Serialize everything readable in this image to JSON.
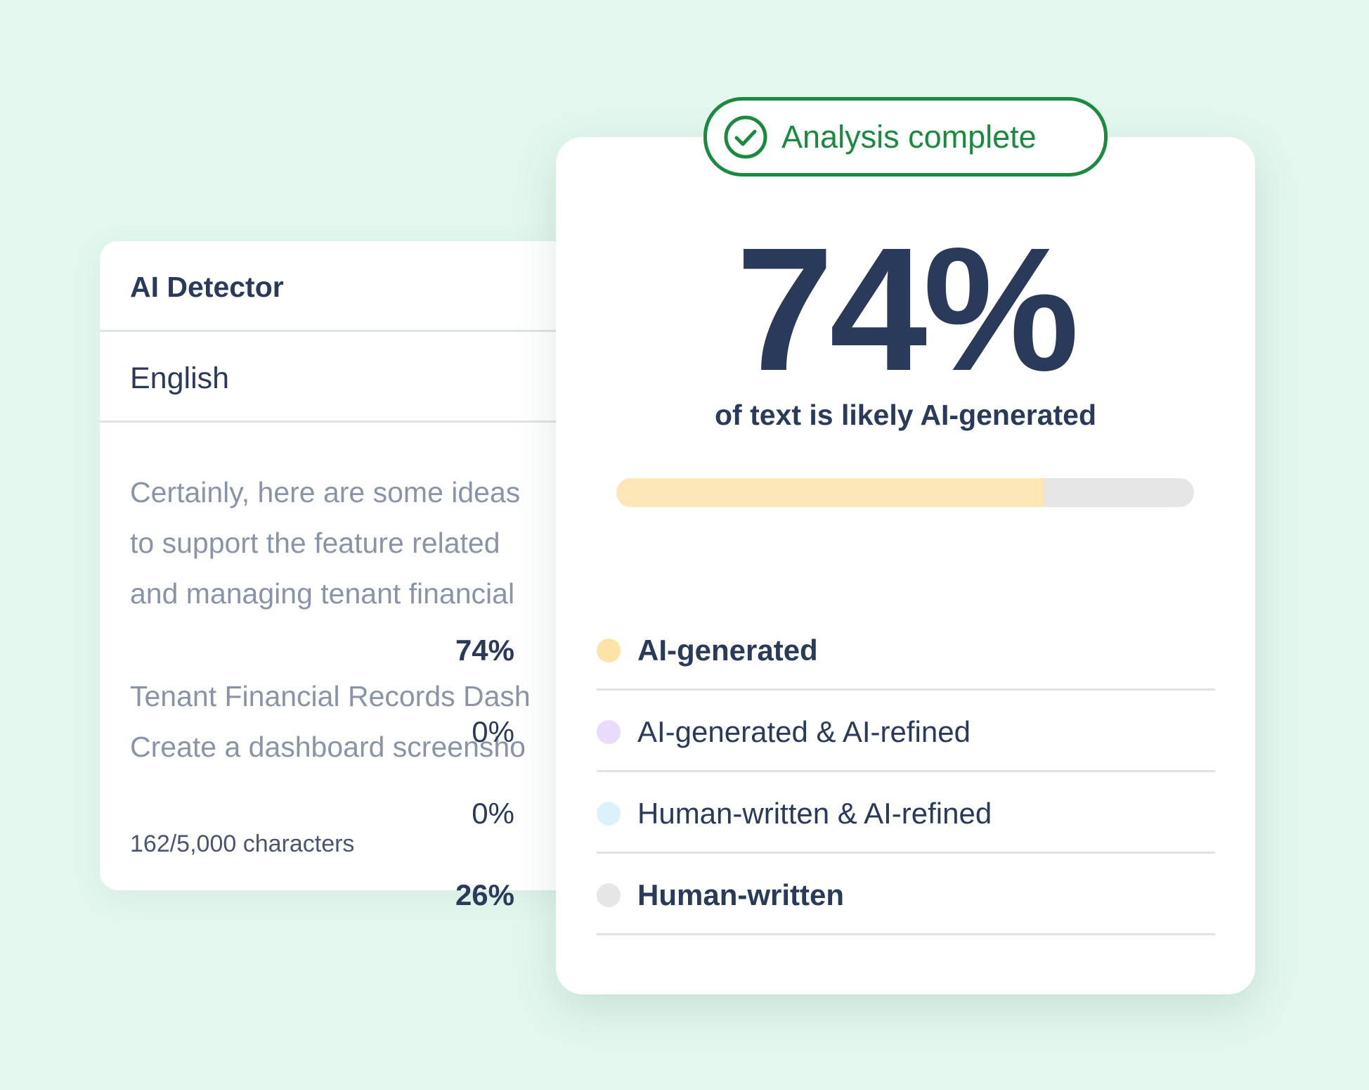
{
  "input_panel": {
    "title": "AI Detector",
    "language": "English",
    "text_lines": [
      "Certainly, here are some ideas",
      "to support the feature related",
      "and managing tenant financial",
      "Tenant Financial Records Dash",
      "Create a dashboard screensho"
    ],
    "char_count": "162/5,000 characters"
  },
  "result_panel": {
    "status": "Analysis complete",
    "score": {
      "value": 74,
      "label": "74%"
    },
    "caption": "of text is likely AI-generated",
    "bar_color": "#fde6b5",
    "breakdown": [
      {
        "label": "AI-generated",
        "value": 74,
        "value_label": "74%",
        "color": "#fde3a8",
        "bold": true
      },
      {
        "label": "AI-generated & AI-refined",
        "value": 0,
        "value_label": "0%",
        "color": "#e9dbfb",
        "bold": false
      },
      {
        "label": "Human-written & AI-refined",
        "value": 0,
        "value_label": "0%",
        "color": "#dbf1fb",
        "bold": false
      },
      {
        "label": "Human-written",
        "value": 26,
        "value_label": "26%",
        "color": "#e6e6e6",
        "bold": true
      }
    ]
  }
}
